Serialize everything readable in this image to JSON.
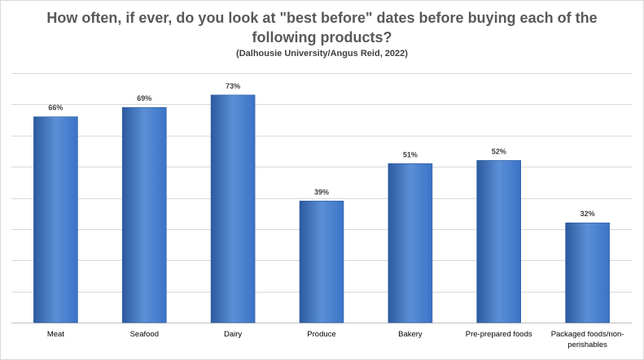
{
  "chart_data": {
    "type": "bar",
    "title": "How often, if ever, do you look at \"best before\" dates before buying each of the following products?",
    "subtitle": "(Dalhousie University/Angus Reid, 2022)",
    "categories": [
      "Meat",
      "Seafood",
      "Dairy",
      "Produce",
      "Bakery",
      "Pre-prepared foods",
      "Packaged foods/non-perishables"
    ],
    "category_lines": [
      [
        "Meat"
      ],
      [
        "Seafood"
      ],
      [
        "Dairy"
      ],
      [
        "Produce"
      ],
      [
        "Bakery"
      ],
      [
        "Pre-prepared foods"
      ],
      [
        "Packaged foods/non-",
        "perishables"
      ]
    ],
    "values": [
      66,
      69,
      73,
      39,
      51,
      52,
      32
    ],
    "value_labels": [
      "66%",
      "69%",
      "73%",
      "39%",
      "51%",
      "52%",
      "32%"
    ],
    "ylim": [
      0,
      80
    ],
    "y_gridline_step": 10,
    "y_axis_labels_shown": false,
    "grid": true,
    "legend": "none",
    "colors": {
      "bar_light": "#5b8fd6",
      "bar_mid": "#3b73c6",
      "bar_dark": "#2c5a9e",
      "gridline": "#d9d9d9",
      "axis": "#bfbfbf"
    }
  }
}
